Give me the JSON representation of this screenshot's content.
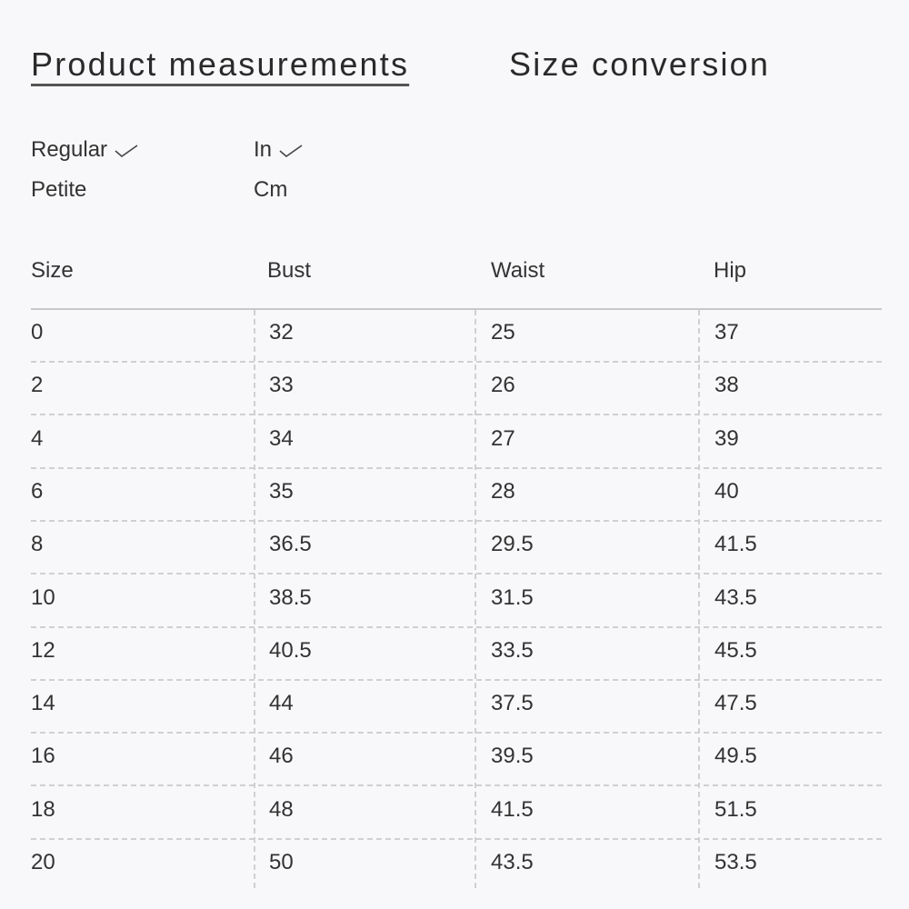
{
  "tabs": [
    {
      "label": "Product measurements",
      "active": true
    },
    {
      "label": "Size conversion",
      "active": false
    }
  ],
  "fit_options": [
    {
      "label": "Regular",
      "selected": true
    },
    {
      "label": "Petite",
      "selected": false
    }
  ],
  "unit_options": [
    {
      "label": "In",
      "selected": true
    },
    {
      "label": "Cm",
      "selected": false
    }
  ],
  "table": {
    "headers": [
      "Size",
      "Bust",
      "Waist",
      "Hip"
    ],
    "rows": [
      [
        "0",
        "32",
        "25",
        "37"
      ],
      [
        "2",
        "33",
        "26",
        "38"
      ],
      [
        "4",
        "34",
        "27",
        "39"
      ],
      [
        "6",
        "35",
        "28",
        "40"
      ],
      [
        "8",
        "36.5",
        "29.5",
        "41.5"
      ],
      [
        "10",
        "38.5",
        "31.5",
        "43.5"
      ],
      [
        "12",
        "40.5",
        "33.5",
        "45.5"
      ],
      [
        "14",
        "44",
        "37.5",
        "47.5"
      ],
      [
        "16",
        "46",
        "39.5",
        "49.5"
      ],
      [
        "18",
        "48",
        "41.5",
        "51.5"
      ],
      [
        "20",
        "50",
        "43.5",
        "53.5"
      ]
    ]
  }
}
